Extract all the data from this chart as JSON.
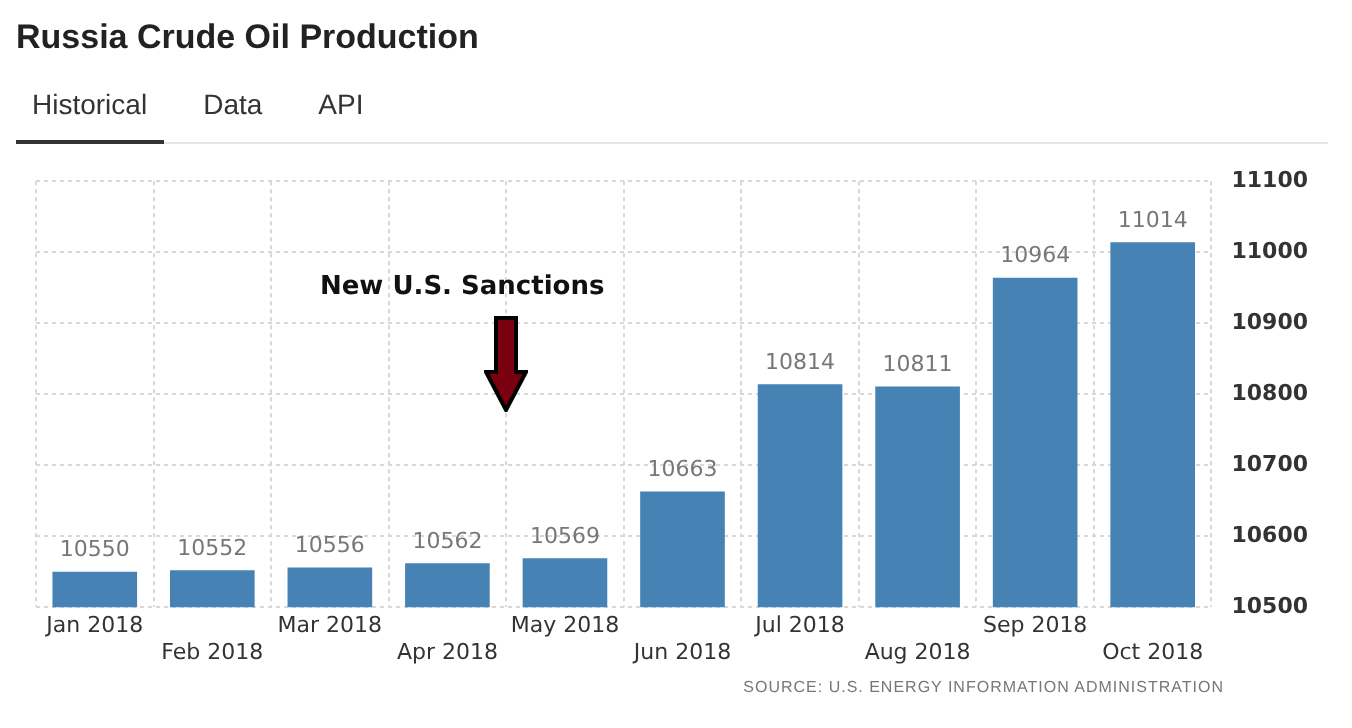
{
  "chart_data": {
    "type": "bar",
    "title": "Russia Crude Oil Production",
    "categories": [
      "Jan 2018",
      "Feb 2018",
      "Mar 2018",
      "Apr 2018",
      "May 2018",
      "Jun 2018",
      "Jul 2018",
      "Aug 2018",
      "Sep 2018",
      "Oct 2018"
    ],
    "values": [
      10550,
      10552,
      10556,
      10562,
      10569,
      10663,
      10814,
      10811,
      10964,
      11014
    ],
    "color": "#4682b4",
    "ylim": [
      10500,
      11100
    ],
    "yticks": [
      10500,
      10600,
      10700,
      10800,
      10900,
      11000,
      11100
    ],
    "grid": true,
    "data_labels": true,
    "annotations": [
      "New U.S. Sanctions",
      "Historical",
      "Data",
      "API",
      "SOURCE: U.S. ENERGY INFORMATION ADMINISTRATION"
    ]
  }
}
